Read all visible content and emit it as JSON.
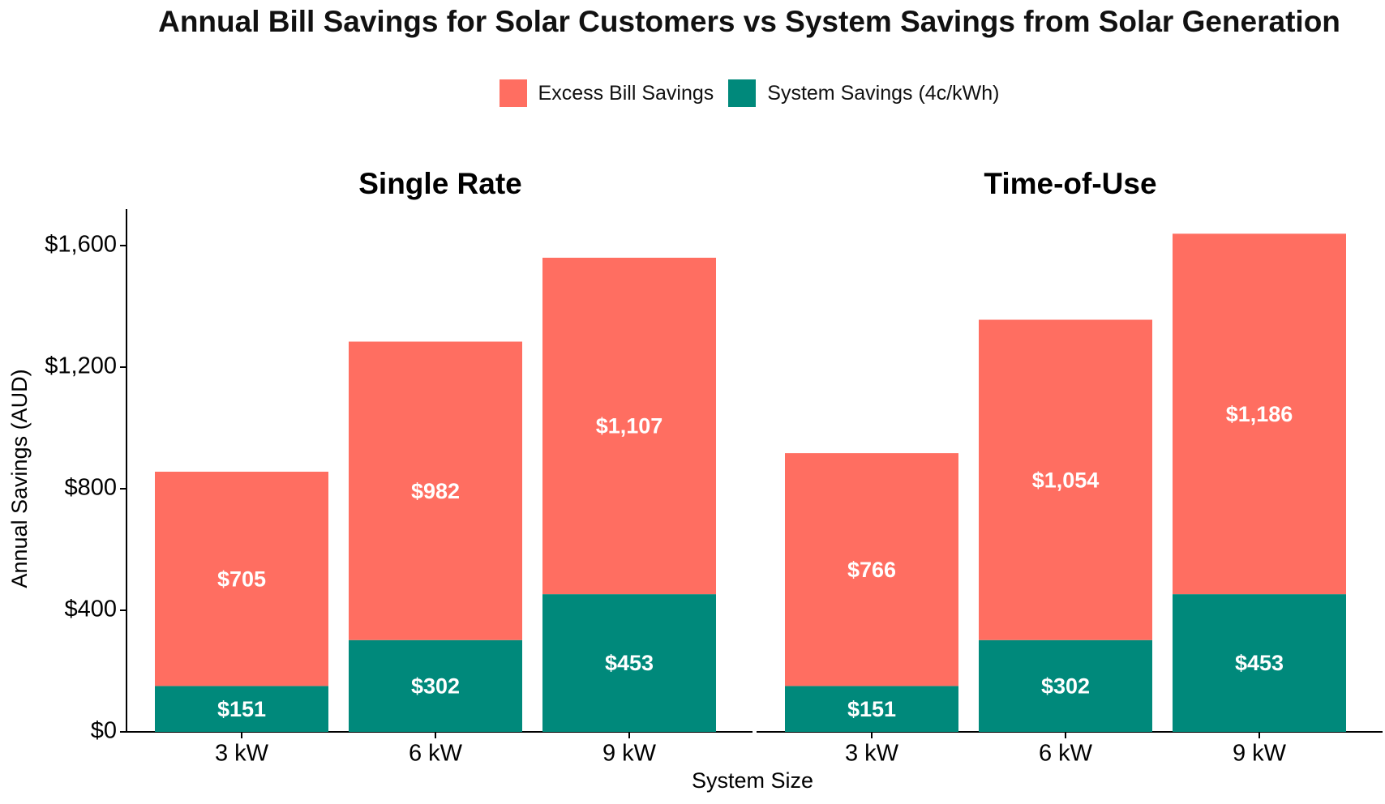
{
  "chart_data": {
    "type": "bar",
    "stacked": true,
    "title": "Annual Bill Savings for Solar Customers vs System Savings from Solar Generation",
    "xlabel": "System Size",
    "ylabel": "Annual Savings (AUD)",
    "ylim": [
      0,
      1720
    ],
    "yticks": [
      0,
      400,
      800,
      1200,
      1600
    ],
    "ytick_labels": [
      "$0",
      "$400",
      "$800",
      "$1,200",
      "$1,600"
    ],
    "legend_position": "top-center",
    "colors": {
      "excess": "#FF6E61",
      "system": "#00897B"
    },
    "legend": [
      "Excess Bill Savings",
      "System Savings (4c/kWh)"
    ],
    "categories": [
      "3 kW",
      "6 kW",
      "9 kW"
    ],
    "panels": [
      {
        "title": "Single Rate",
        "series": [
          {
            "name": "System Savings (4c/kWh)",
            "values": [
              151,
              302,
              453
            ],
            "labels": [
              "$151",
              "$302",
              "$453"
            ]
          },
          {
            "name": "Excess Bill Savings",
            "values": [
              705,
              982,
              1107
            ],
            "labels": [
              "$705",
              "$982",
              "$1,107"
            ]
          }
        ]
      },
      {
        "title": "Time-of-Use",
        "series": [
          {
            "name": "System Savings (4c/kWh)",
            "values": [
              151,
              302,
              453
            ],
            "labels": [
              "$151",
              "$302",
              "$453"
            ]
          },
          {
            "name": "Excess Bill Savings",
            "values": [
              766,
              1054,
              1186
            ],
            "labels": [
              "$766",
              "$1,054",
              "$1,186"
            ]
          }
        ]
      }
    ]
  }
}
